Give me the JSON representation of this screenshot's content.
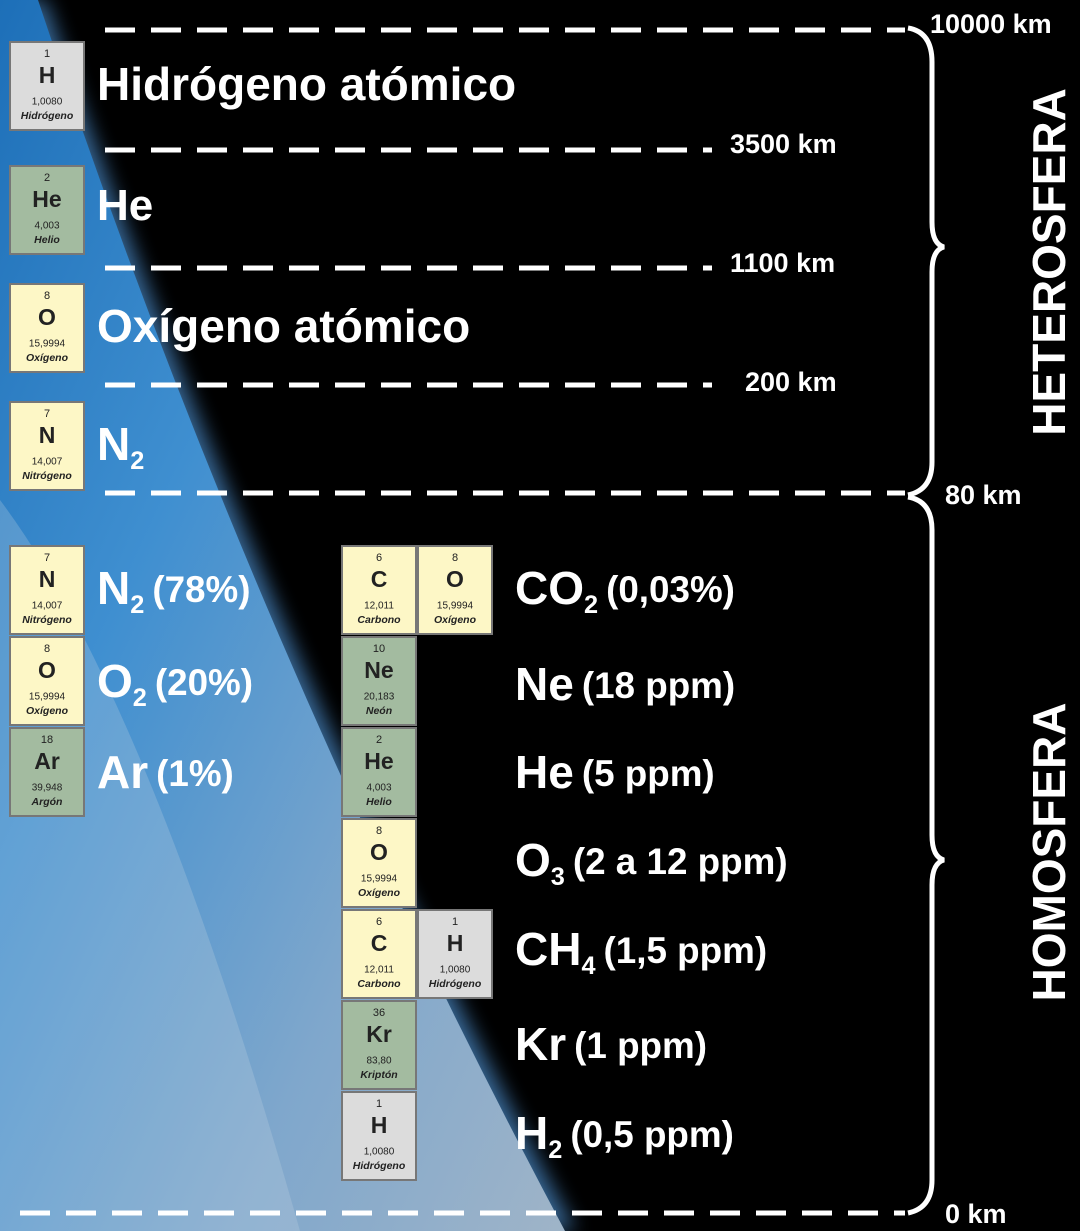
{
  "altitudes": [
    "10000 km",
    "3500 km",
    "1100 km",
    "200 km",
    "80 km",
    "0 km"
  ],
  "layers": [
    "HETEROSFERA",
    "HOMOSFERA"
  ],
  "gases": [
    {
      "formula": "Hidrógeno atómico",
      "tiles": [
        {
          "number": 1,
          "symbol": "H",
          "mass": "1,0080",
          "name": "Hidrógeno",
          "color": "#dcdcdc"
        }
      ]
    },
    {
      "formula": "He",
      "tiles": [
        {
          "number": 2,
          "symbol": "He",
          "mass": "4,003",
          "name": "Helio",
          "color": "#a3bba0"
        }
      ]
    },
    {
      "formula": "Oxígeno atómico",
      "tiles": [
        {
          "number": 8,
          "symbol": "O",
          "mass": "15,9994",
          "name": "Oxígeno",
          "color": "#fdf7c6"
        }
      ]
    },
    {
      "formula": "N",
      "sub": "2",
      "tiles": [
        {
          "number": 7,
          "symbol": "N",
          "mass": "14,007",
          "name": "Nitrógeno",
          "color": "#fdf7c6"
        }
      ]
    },
    {
      "formula": "N",
      "sub": "2",
      "amount": "(78%)",
      "tiles": [
        {
          "number": 7,
          "symbol": "N",
          "mass": "14,007",
          "name": "Nitrógeno",
          "color": "#fdf7c6"
        }
      ]
    },
    {
      "formula": "O",
      "sub": "2",
      "amount": "(20%)",
      "tiles": [
        {
          "number": 8,
          "symbol": "O",
          "mass": "15,9994",
          "name": "Oxígeno",
          "color": "#fdf7c6"
        }
      ]
    },
    {
      "formula": "Ar",
      "amount": "(1%)",
      "tiles": [
        {
          "number": 18,
          "symbol": "Ar",
          "mass": "39,948",
          "name": "Argón",
          "color": "#a3bba0"
        }
      ]
    },
    {
      "formula": "CO",
      "sub": "2",
      "amount": "(0,03%)",
      "tiles": [
        {
          "number": 6,
          "symbol": "C",
          "mass": "12,011",
          "name": "Carbono",
          "color": "#fdf7c6"
        },
        {
          "number": 8,
          "symbol": "O",
          "mass": "15,9994",
          "name": "Oxígeno",
          "color": "#fdf7c6"
        }
      ]
    },
    {
      "formula": "Ne",
      "amount": "(18 ppm)",
      "tiles": [
        {
          "number": 10,
          "symbol": "Ne",
          "mass": "20,183",
          "name": "Neón",
          "color": "#a3bba0"
        }
      ]
    },
    {
      "formula": "He",
      "amount": "(5 ppm)",
      "tiles": [
        {
          "number": 2,
          "symbol": "He",
          "mass": "4,003",
          "name": "Helio",
          "color": "#a3bba0"
        }
      ]
    },
    {
      "formula": "O",
      "sub": "3",
      "amount": "(2 a 12 ppm)",
      "tiles": [
        {
          "number": 8,
          "symbol": "O",
          "mass": "15,9994",
          "name": "Oxígeno",
          "color": "#fdf7c6"
        }
      ]
    },
    {
      "formula": "CH",
      "sub": "4",
      "amount": "(1,5 ppm)",
      "tiles": [
        {
          "number": 6,
          "symbol": "C",
          "mass": "12,011",
          "name": "Carbono",
          "color": "#fdf7c6"
        },
        {
          "number": 1,
          "symbol": "H",
          "mass": "1,0080",
          "name": "Hidrógeno",
          "color": "#dcdcdc"
        }
      ]
    },
    {
      "formula": "Kr",
      "amount": "(1 ppm)",
      "tiles": [
        {
          "number": 36,
          "symbol": "Kr",
          "mass": "83,80",
          "name": "Kriptón",
          "color": "#a3bba0"
        }
      ]
    },
    {
      "formula": "H",
      "sub": "2",
      "amount": "(0,5 ppm)",
      "tiles": [
        {
          "number": 1,
          "symbol": "H",
          "mass": "1,0080",
          "name": "Hidrógeno",
          "color": "#dcdcdc"
        }
      ]
    }
  ]
}
